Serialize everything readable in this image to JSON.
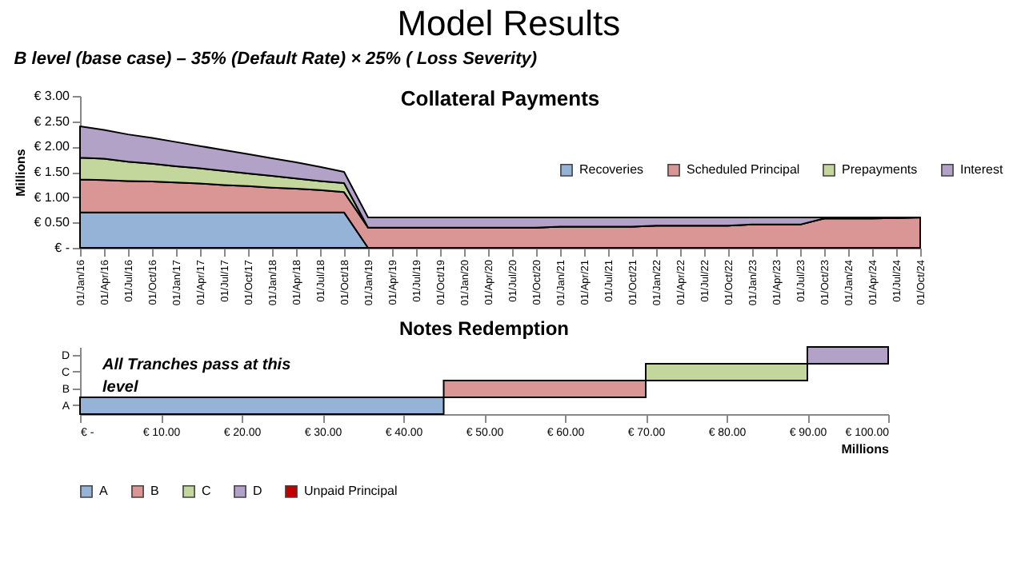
{
  "chart_data": [
    {
      "type": "area",
      "title": "Collateral Payments",
      "subtitle": "B level (base case) – 35% (Default Rate) × 25% ( Loss Severity)",
      "annotations": [
        "Model Results"
      ],
      "ylabel": "Millions",
      "stacked": true,
      "legend": "right",
      "ylim": [
        0,
        3
      ],
      "yticks": [
        {
          "value": 0,
          "label": "€ -"
        },
        {
          "value": 0.5,
          "label": "€ 0.50"
        },
        {
          "value": 1,
          "label": "€ 1.00"
        },
        {
          "value": 1.5,
          "label": "€ 1.50"
        },
        {
          "value": 2,
          "label": "€ 2.00"
        },
        {
          "value": 2.5,
          "label": "€ 2.50"
        },
        {
          "value": 3,
          "label": "€ 3.00"
        }
      ],
      "categories": [
        "01/Jan/16",
        "01/Apr/16",
        "01/Jul/16",
        "01/Oct/16",
        "01/Jan/17",
        "01/Apr/17",
        "01/Jul/17",
        "01/Oct/17",
        "01/Jan/18",
        "01/Apr/18",
        "01/Jul/18",
        "01/Oct/18",
        "01/Jan/19",
        "01/Apr/19",
        "01/Jul/19",
        "01/Oct/19",
        "01/Jan/20",
        "01/Apr/20",
        "01/Jul/20",
        "01/Oct/20",
        "01/Jan/21",
        "01/Apr/21",
        "01/Jul/21",
        "01/Oct/21",
        "01/Jan/22",
        "01/Apr/22",
        "01/Jul/22",
        "01/Oct/22",
        "01/Jan/23",
        "01/Apr/23",
        "01/Jul/23",
        "01/Oct/23",
        "01/Jan/24",
        "01/Apr/24",
        "01/Jul/24",
        "01/Oct/24"
      ],
      "series": [
        {
          "name": "Recoveries",
          "color": "#95b3d7",
          "values": [
            0.7,
            0.7,
            0.7,
            0.7,
            0.7,
            0.7,
            0.7,
            0.7,
            0.7,
            0.7,
            0.7,
            0.7,
            0,
            0,
            0,
            0,
            0,
            0,
            0,
            0,
            0,
            0,
            0,
            0,
            0,
            0,
            0,
            0,
            0,
            0,
            0,
            0,
            0,
            0,
            0,
            0
          ]
        },
        {
          "name": "Scheduled Principal",
          "color": "#d99694",
          "values": [
            0.65,
            0.64,
            0.62,
            0.61,
            0.59,
            0.57,
            0.54,
            0.52,
            0.49,
            0.47,
            0.44,
            0.4,
            0.4,
            0.4,
            0.4,
            0.4,
            0.4,
            0.4,
            0.4,
            0.4,
            0.42,
            0.42,
            0.42,
            0.42,
            0.44,
            0.44,
            0.44,
            0.44,
            0.46,
            0.46,
            0.46,
            0.58,
            0.58,
            0.58,
            0.59,
            0.6
          ]
        },
        {
          "name": "Prepayments",
          "color": "#c3d69b",
          "values": [
            0.43,
            0.42,
            0.38,
            0.35,
            0.32,
            0.3,
            0.28,
            0.25,
            0.23,
            0.2,
            0.18,
            0.18,
            0,
            0,
            0,
            0,
            0,
            0,
            0,
            0,
            0,
            0,
            0,
            0,
            0,
            0,
            0,
            0,
            0,
            0,
            0,
            0,
            0,
            0,
            0,
            0
          ]
        },
        {
          "name": "Interest",
          "color": "#b3a2c7",
          "values": [
            0.62,
            0.57,
            0.54,
            0.51,
            0.48,
            0.44,
            0.41,
            0.38,
            0.35,
            0.32,
            0.28,
            0.22,
            0.2,
            0.2,
            0.2,
            0.2,
            0.2,
            0.2,
            0.2,
            0.2,
            0.18,
            0.18,
            0.18,
            0.18,
            0.16,
            0.16,
            0.16,
            0.16,
            0.14,
            0.14,
            0.14,
            0.02,
            0.02,
            0.02,
            0.01,
            0
          ]
        }
      ]
    },
    {
      "type": "bar",
      "orientation": "horizontal",
      "title": "Notes Redemption",
      "xlabel": "Millions",
      "legend": "bottom",
      "annotations": [
        "All Tranches pass at this level"
      ],
      "categories": [
        "D",
        "C",
        "B",
        "A"
      ],
      "xlim": [
        0,
        100
      ],
      "xticks": [
        {
          "value": 0,
          "label": "€ -"
        },
        {
          "value": 10,
          "label": "€ 10.00"
        },
        {
          "value": 20,
          "label": "€ 20.00"
        },
        {
          "value": 30,
          "label": "€ 30.00"
        },
        {
          "value": 40,
          "label": "€ 40.00"
        },
        {
          "value": 50,
          "label": "€ 50.00"
        },
        {
          "value": 60,
          "label": "€ 60.00"
        },
        {
          "value": 70,
          "label": "€ 70.00"
        },
        {
          "value": 80,
          "label": "€ 80.00"
        },
        {
          "value": 90,
          "label": "€ 90.00"
        },
        {
          "value": 100,
          "label": "€ 100.00"
        }
      ],
      "series": [
        {
          "name": "A",
          "color": "#95b3d7",
          "values": [
            null,
            null,
            null,
            45
          ],
          "base": [
            null,
            null,
            null,
            0
          ]
        },
        {
          "name": "B",
          "color": "#d99694",
          "values": [
            null,
            null,
            25,
            null
          ],
          "base": [
            null,
            null,
            45,
            null
          ]
        },
        {
          "name": "C",
          "color": "#c3d69b",
          "values": [
            null,
            20,
            null,
            null
          ],
          "base": [
            null,
            70,
            null,
            null
          ]
        },
        {
          "name": "D",
          "color": "#b3a2c7",
          "values": [
            10,
            null,
            null,
            null
          ],
          "base": [
            90,
            null,
            null,
            null
          ]
        },
        {
          "name": "Unpaid Principal",
          "color": "#c00000",
          "values": [
            null,
            null,
            null,
            null
          ]
        }
      ]
    }
  ]
}
